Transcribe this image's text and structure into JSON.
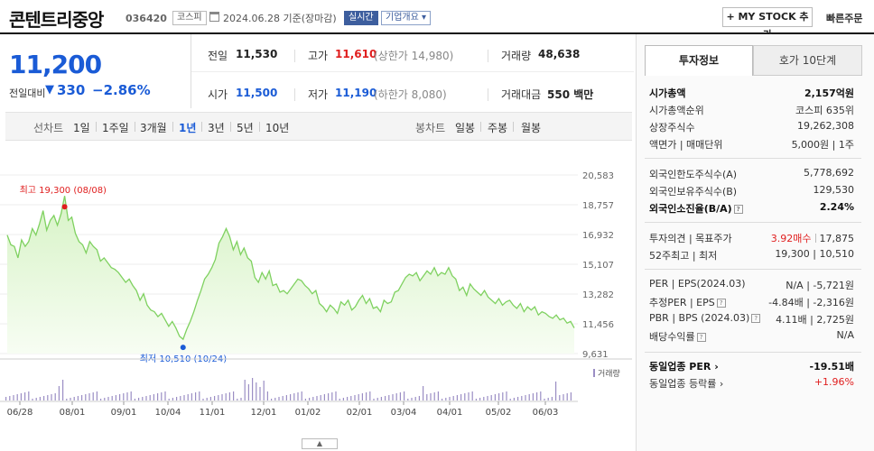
{
  "header": {
    "name": "콘텐트리중앙",
    "code": "036420",
    "market": "코스피",
    "date": "2024.06.28 기준(장마감)",
    "live": "실시간",
    "overview": "기업개요 ▾",
    "mystock": "+ MY STOCK 추가",
    "quick_order": "빠른주문"
  },
  "price": {
    "current": "11,200",
    "prev_label": "전일대비",
    "arrow": "▼",
    "change": "330",
    "change_pct": "−2.86%"
  },
  "quote": {
    "prev_close_label": "전일",
    "prev_close": "11,530",
    "high_label": "고가",
    "high": "11,610",
    "upper_limit": "(상한가 14,980)",
    "volume_label": "거래량",
    "volume": "48,638",
    "open_label": "시가",
    "open": "11,500",
    "low_label": "저가",
    "low": "11,190",
    "lower_limit": "(하한가 8,080)",
    "amount_label": "거래대금",
    "amount": "550 백만"
  },
  "period_bar": {
    "line_label": "선차트",
    "periods": [
      "1일",
      "1주일",
      "3개월",
      "1년",
      "3년",
      "5년",
      "10년"
    ],
    "selected": "1년",
    "candle_label": "봉차트",
    "candles": [
      "일봉",
      "주봉",
      "월봉"
    ]
  },
  "chart_data": {
    "type": "area",
    "y_ticks": [
      "20,583",
      "18,757",
      "16,932",
      "15,107",
      "13,282",
      "11,456",
      "9,631"
    ],
    "ylim": [
      9631,
      20583
    ],
    "x_ticks": [
      "06/28",
      "08/01",
      "09/01",
      "10/04",
      "11/01",
      "12/01",
      "01/02",
      "02/01",
      "03/04",
      "04/01",
      "05/02",
      "06/03"
    ],
    "high_annotation": "최고 19,300 (08/08)",
    "low_annotation": "최저 10,510 (10/24)",
    "volume_label": "거래량",
    "colors": {
      "line": "#7fd160",
      "fill_top": "#d7f3c6",
      "fill_bottom": "#f7fdf3",
      "high": "#e01e1e",
      "low": "#1a5bd6"
    },
    "price_values": [
      16900,
      16300,
      16200,
      15500,
      16600,
      16200,
      16500,
      17300,
      16900,
      17600,
      18400,
      17200,
      17800,
      18100,
      17500,
      18200,
      19300,
      17800,
      18000,
      17000,
      16500,
      16300,
      15800,
      16500,
      16200,
      16000,
      15300,
      15500,
      15200,
      14900,
      14800,
      14600,
      14300,
      14000,
      14200,
      13800,
      13500,
      12900,
      13300,
      12600,
      12300,
      12200,
      11900,
      12100,
      11700,
      11300,
      11600,
      11200,
      10700,
      10510,
      11100,
      11600,
      12200,
      12900,
      13500,
      14200,
      14500,
      14900,
      15400,
      16400,
      16800,
      17300,
      16800,
      16000,
      16500,
      15700,
      16100,
      15500,
      15300,
      14300,
      14000,
      14600,
      14200,
      14700,
      13800,
      13900,
      13400,
      13500,
      13300,
      13600,
      13900,
      14200,
      14100,
      13800,
      13600,
      13300,
      13500,
      12700,
      12500,
      12200,
      12600,
      12400,
      12100,
      12800,
      12600,
      12900,
      12300,
      12500,
      12900,
      13200,
      12700,
      13000,
      12400,
      12500,
      12200,
      12900,
      12700,
      12800,
      13400,
      13500,
      13900,
      14300,
      14500,
      14400,
      14600,
      14100,
      14400,
      14700,
      14500,
      14900,
      14400,
      14600,
      14500,
      14900,
      14400,
      14200,
      13500,
      13700,
      13200,
      13900,
      13600,
      13400,
      13200,
      13500,
      13100,
      12900,
      12700,
      13000,
      12600,
      12800,
      12900,
      12600,
      12400,
      12700,
      12200,
      12500,
      12300,
      12500,
      12000,
      12200,
      12100,
      11900,
      11800,
      12000,
      11700,
      11800,
      11500,
      11600,
      11200
    ]
  },
  "right": {
    "tab_invest": "투자정보",
    "tab_hoga": "호가 10단계",
    "rows": [
      {
        "label": "시가총액",
        "value": "2,157억원"
      },
      {
        "label": "시가총액순위",
        "value": "코스피 635위"
      },
      {
        "label": "상장주식수",
        "value": "19,262,308"
      },
      {
        "label": "액면가 | 매매단위",
        "value": "5,000원 | 1주"
      },
      {
        "label": "외국인한도주식수(A)",
        "value": "5,778,692"
      },
      {
        "label": "외국인보유주식수(B)",
        "value": "129,530"
      },
      {
        "label": "외국인소진율(B/A)",
        "value": "2.24%"
      },
      {
        "label": "투자의견 | 목표주가",
        "opinion": "3.92매수",
        "target": "17,875"
      },
      {
        "label": "52주최고 | 최저",
        "value": "19,300 | 10,510"
      },
      {
        "label": "PER | EPS(2024.03)",
        "value": "N/A | -5,721원"
      },
      {
        "label": "추정PER | EPS",
        "value": "-4.84배 | -2,316원"
      },
      {
        "label": "PBR | BPS (2024.03)",
        "value": "4.11배 | 2,725원"
      },
      {
        "label": "배당수익률",
        "value": "N/A"
      },
      {
        "label": "동일업종 PER",
        "value": "-19.51배"
      },
      {
        "label": "동일업종 등락률",
        "value": "+1.96%"
      }
    ]
  },
  "scroll_label": "▲"
}
